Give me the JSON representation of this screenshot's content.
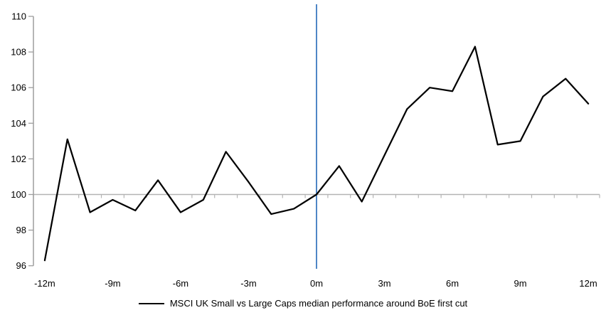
{
  "chart_data": {
    "type": "line",
    "title": "",
    "xlabel": "",
    "ylabel": "",
    "x": [
      -12,
      -11,
      -10,
      -9,
      -8,
      -7,
      -6,
      -5,
      -4,
      -3,
      -2,
      -1,
      0,
      1,
      2,
      3,
      4,
      5,
      6,
      7,
      8,
      9,
      10,
      11,
      12
    ],
    "series": [
      {
        "name": "MSCI UK Small vs Large Caps median performance around BoE first cut",
        "color": "#000000",
        "values": [
          96.3,
          103.1,
          99.0,
          99.7,
          99.1,
          100.8,
          99.0,
          99.7,
          102.4,
          100.7,
          98.9,
          99.2,
          100.0,
          101.6,
          99.6,
          102.2,
          104.8,
          106.0,
          105.8,
          108.3,
          102.8,
          103.0,
          105.5,
          106.5,
          105.1
        ]
      }
    ],
    "y_ticks": [
      96,
      98,
      100,
      102,
      104,
      106,
      108,
      110
    ],
    "ylim": [
      96,
      110
    ],
    "x_tick_months": [
      -12,
      -9,
      -6,
      -3,
      0,
      3,
      6,
      9,
      12
    ],
    "x_tick_labels": [
      "-12m",
      "-9m",
      "-6m",
      "-3m",
      "0m",
      "3m",
      "6m",
      "9m",
      "12m"
    ],
    "baseline_value": 100,
    "event_line_x": 0,
    "grid": "baseline-only",
    "legend_position": "bottom"
  },
  "colors": {
    "series_line": "#000000",
    "event_line": "#4f86c6",
    "y_axis": "#9e9e9e",
    "baseline": "#b4b4b4",
    "text": "#000000",
    "background": "#ffffff"
  }
}
